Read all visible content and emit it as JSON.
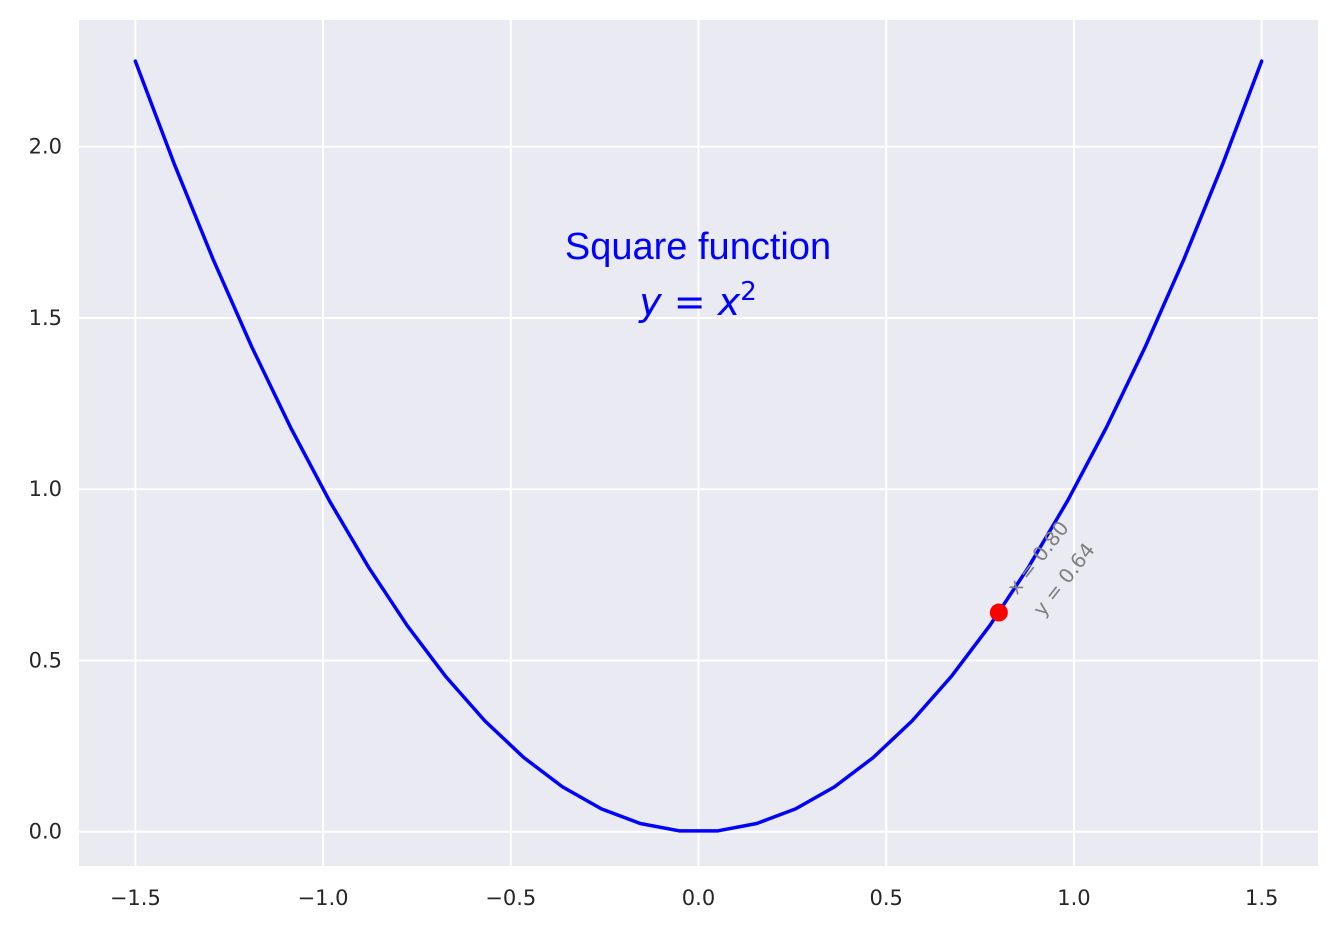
{
  "chart_data": {
    "type": "line",
    "title": "Square function",
    "formula": {
      "lhs": "y",
      "eq": " = ",
      "base": "x",
      "exp": "2"
    },
    "xlabel": "",
    "ylabel": "",
    "xlim": [
      -1.65,
      1.65
    ],
    "ylim": [
      -0.1,
      2.37
    ],
    "grid": true,
    "x_ticks": [
      -1.5,
      -1.0,
      -0.5,
      0.0,
      0.5,
      1.0,
      1.5
    ],
    "x_tick_labels": [
      "−1.5",
      "−1.0",
      "−0.5",
      "0.0",
      "0.5",
      "1.0",
      "1.5"
    ],
    "y_ticks": [
      0.0,
      0.5,
      1.0,
      1.5,
      2.0
    ],
    "y_tick_labels": [
      "0.0",
      "0.5",
      "1.0",
      "1.5",
      "2.0"
    ],
    "series": [
      {
        "name": "y = x^2",
        "color": "#0000ff",
        "x": [
          -1.5,
          -1.3966,
          -1.2931,
          -1.1897,
          -1.0862,
          -0.9828,
          -0.8793,
          -0.7759,
          -0.6724,
          -0.569,
          -0.4655,
          -0.3621,
          -0.2586,
          -0.1552,
          -0.0517,
          0.0517,
          0.1552,
          0.2586,
          0.3621,
          0.4655,
          0.569,
          0.6724,
          0.7759,
          0.8793,
          0.9828,
          1.0862,
          1.1897,
          1.2931,
          1.3966,
          1.5
        ],
        "y": [
          2.25,
          1.9505,
          1.6721,
          1.4153,
          1.1799,
          0.9658,
          0.7732,
          0.602,
          0.4521,
          0.3237,
          0.2167,
          0.1311,
          0.0669,
          0.0241,
          0.0027,
          0.0027,
          0.0241,
          0.0669,
          0.1311,
          0.2167,
          0.3237,
          0.4521,
          0.602,
          0.7732,
          0.9658,
          1.1799,
          1.4153,
          1.6721,
          1.9505,
          2.25
        ]
      }
    ],
    "highlight_point": {
      "x": 0.8,
      "y": 0.64,
      "color": "#ff0000",
      "label_x": "x = 0.80",
      "label_y": "y = 0.64",
      "label_color": "#808080"
    },
    "colors": {
      "background": "#eaeaf2",
      "grid": "#ffffff",
      "tick_text": "#262626",
      "title": "#0000ff"
    }
  }
}
